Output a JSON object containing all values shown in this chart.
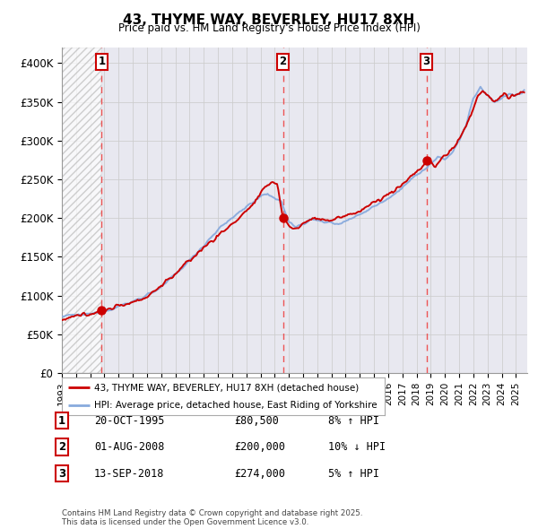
{
  "title": "43, THYME WAY, BEVERLEY, HU17 8XH",
  "subtitle": "Price paid vs. HM Land Registry's House Price Index (HPI)",
  "ylabel_ticks": [
    "£0",
    "£50K",
    "£100K",
    "£150K",
    "£200K",
    "£250K",
    "£300K",
    "£350K",
    "£400K"
  ],
  "ytick_values": [
    0,
    50000,
    100000,
    150000,
    200000,
    250000,
    300000,
    350000,
    400000
  ],
  "ylim": [
    0,
    420000
  ],
  "xlim_start": 1993.0,
  "xlim_end": 2025.8,
  "transactions": [
    {
      "label": "1",
      "date": 1995.8,
      "price": 80500,
      "year_label": "20-OCT-1995",
      "price_label": "£80,500",
      "change": "8% ↑ HPI"
    },
    {
      "label": "2",
      "date": 2008.58,
      "price": 200000,
      "year_label": "01-AUG-2008",
      "price_label": "£200,000",
      "change": "10% ↓ HPI"
    },
    {
      "label": "3",
      "date": 2018.7,
      "price": 274000,
      "year_label": "13-SEP-2018",
      "price_label": "£274,000",
      "change": "5% ↑ HPI"
    }
  ],
  "legend_property_label": "43, THYME WAY, BEVERLEY, HU17 8XH (detached house)",
  "legend_hpi_label": "HPI: Average price, detached house, East Riding of Yorkshire",
  "footer": "Contains HM Land Registry data © Crown copyright and database right 2025.\nThis data is licensed under the Open Government Licence v3.0.",
  "property_color": "#cc0000",
  "hpi_color": "#88aadd",
  "grid_color": "#cccccc",
  "dashed_line_color": "#ee4444",
  "bg_color": "#ffffff",
  "plot_bg_color": "#e8e8f0"
}
